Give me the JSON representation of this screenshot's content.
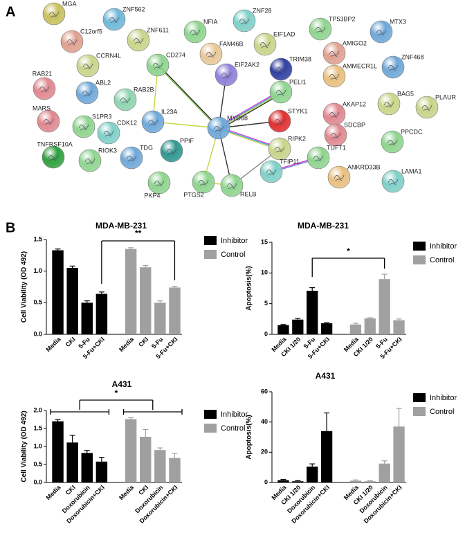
{
  "panel_labels": [
    "A",
    "B"
  ],
  "network": {
    "nodes": [
      {
        "label": "MGA"
      },
      {
        "label": "ZNF562"
      },
      {
        "label": "C12orf5"
      },
      {
        "label": "ZNF611"
      },
      {
        "label": "NFIA"
      },
      {
        "label": "ZNF28"
      },
      {
        "label": "EIF1AD"
      },
      {
        "label": "TP53BP2"
      },
      {
        "label": "MTX3"
      },
      {
        "label": "FAM46B"
      },
      {
        "label": "CCRN4L"
      },
      {
        "label": "AMIGO2"
      },
      {
        "label": "ZNF468"
      },
      {
        "label": "TRIM38"
      },
      {
        "label": "AMMECR1L"
      },
      {
        "label": "CD274"
      },
      {
        "label": "EIF2AK2"
      },
      {
        "label": "RAB21"
      },
      {
        "label": "ABL2"
      },
      {
        "label": "PELI1"
      },
      {
        "label": "BAG5"
      },
      {
        "label": "PLAUR"
      },
      {
        "label": "RAB2B"
      },
      {
        "label": "AKAP12"
      },
      {
        "label": "MYD88"
      },
      {
        "label": "IL23A"
      },
      {
        "label": "STYK1"
      },
      {
        "label": "MARS"
      },
      {
        "label": "S1PR3"
      },
      {
        "label": "CDK12"
      },
      {
        "label": "SDCBP"
      },
      {
        "label": "TUFT1"
      },
      {
        "label": "PPCDC"
      },
      {
        "label": "PPIF"
      },
      {
        "label": "RIPK2"
      },
      {
        "label": "TNFRSF10A"
      },
      {
        "label": "RIOK3"
      },
      {
        "label": "TDG"
      },
      {
        "label": "TFIP11"
      },
      {
        "label": "ANKRD33B"
      },
      {
        "label": "LAMA1"
      },
      {
        "label": "PKP4"
      },
      {
        "label": "PTGS2"
      },
      {
        "label": "RELB"
      }
    ]
  },
  "chart_data": [
    {
      "type": "bar",
      "title": "MDA-MB-231",
      "y_label": "Cell Viability (OD 492)",
      "categories": [
        "Media",
        "CKI",
        "5-Fu",
        "5-Fu+CKI",
        "Media",
        "CKI",
        "5-Fu",
        "5-Fu+CKI"
      ],
      "series": [
        {
          "name": "Inhibitor",
          "color": "#000000",
          "values": [
            1.33,
            1.05,
            0.5,
            0.64,
            null,
            null,
            null,
            null
          ],
          "errors": [
            0.02,
            0.03,
            0.03,
            0.03,
            null,
            null,
            null,
            null
          ]
        },
        {
          "name": "Control",
          "color": "#a0a0a0",
          "values": [
            null,
            null,
            null,
            null,
            1.35,
            1.06,
            0.5,
            0.74
          ],
          "errors": [
            null,
            null,
            null,
            null,
            0.02,
            0.03,
            0.03,
            0.02
          ]
        }
      ],
      "ylim": [
        0,
        1.5
      ],
      "yticks": [
        {
          "value": 0,
          "label": "0.0"
        },
        0.5,
        {
          "value": 1,
          "label": "1.0"
        },
        1.5
      ],
      "annotation": "**"
    },
    {
      "type": "bar",
      "title": "MDA-MB-231",
      "y_label": "Apoptosis(%)",
      "categories": [
        "Media",
        "CKI 1/20",
        "5-Fu",
        "5-Fu+CKI",
        "Media",
        "CKI 1/20",
        "5-Fu",
        "5-Fu+CKI"
      ],
      "series": [
        {
          "name": "Inhibitor",
          "color": "#000000",
          "values": [
            1.5,
            2.4,
            7.1,
            1.8,
            null,
            null,
            null,
            null
          ],
          "errors": [
            0.1,
            0.2,
            0.5,
            0.1,
            null,
            null,
            null,
            null
          ]
        },
        {
          "name": "Control",
          "color": "#a0a0a0",
          "values": [
            null,
            null,
            null,
            null,
            1.6,
            2.6,
            9.0,
            2.3
          ],
          "errors": [
            null,
            null,
            null,
            null,
            0.2,
            0.1,
            0.8,
            0.2
          ]
        }
      ],
      "ylim": [
        0,
        15
      ],
      "yticks": [
        0,
        5,
        10,
        15
      ],
      "annotation": "*"
    },
    {
      "type": "bar",
      "title": "A431",
      "y_label": "Cell Viability (OD 492)",
      "categories": [
        "Media",
        "CKI",
        "Doxorubicin",
        "Doxorubicin+CKI",
        "Media",
        "CKI",
        "Doxorubicin",
        "Doxorubicin+CKI"
      ],
      "series": [
        {
          "name": "Inhibitor",
          "color": "#000000",
          "values": [
            1.7,
            1.11,
            0.82,
            0.58,
            null,
            null,
            null,
            null
          ],
          "errors": [
            0.05,
            0.2,
            0.07,
            0.12,
            null,
            null,
            null,
            null
          ]
        },
        {
          "name": "Control",
          "color": "#a0a0a0",
          "values": [
            null,
            null,
            null,
            null,
            1.76,
            1.27,
            0.9,
            0.68
          ],
          "errors": [
            null,
            null,
            null,
            null,
            0.04,
            0.2,
            0.06,
            0.13
          ]
        }
      ],
      "ylim": [
        0,
        2
      ],
      "yticks": [
        {
          "value": 0,
          "label": "0.0"
        },
        0.5,
        {
          "value": 1,
          "label": "1.0"
        },
        1.5,
        {
          "value": 2,
          "label": "2.0"
        }
      ],
      "annotation": "*"
    },
    {
      "type": "bar",
      "title": "A431",
      "y_label": "Apoptosis(%)",
      "categories": [
        "Media",
        "CKI 1/20",
        "Doxorubicin",
        "Doxorubicin+CKI",
        "Media",
        "CKI 1/20",
        "Doxorubicin",
        "Doxorubicin+CKI"
      ],
      "series": [
        {
          "name": "Inhibitor",
          "color": "#000000",
          "values": [
            1.5,
            0.8,
            10.5,
            34,
            null,
            null,
            null,
            null
          ],
          "errors": [
            0.5,
            0.4,
            1.8,
            12,
            null,
            null,
            null,
            null
          ]
        },
        {
          "name": "Control",
          "color": "#a0a0a0",
          "values": [
            null,
            null,
            null,
            null,
            1.2,
            0.8,
            12.5,
            37
          ],
          "errors": [
            null,
            null,
            null,
            null,
            0.5,
            0.3,
            1.8,
            12
          ]
        }
      ],
      "ylim": [
        0,
        60
      ],
      "yticks": [
        0,
        20,
        40,
        60
      ]
    }
  ]
}
